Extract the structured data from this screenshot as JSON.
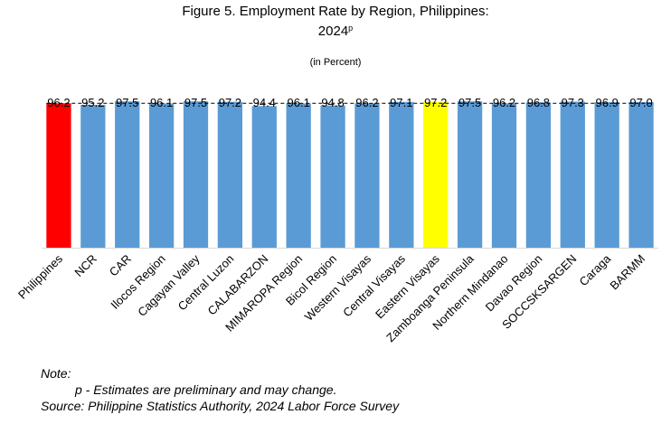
{
  "title_line1": "Figure 5. Employment Rate by Region, Philippines:",
  "title_line2": "2024",
  "title_sup": "p",
  "subtitle": "(in Percent)",
  "chart_data": {
    "type": "bar",
    "categories": [
      "Philippines",
      "NCR",
      "CAR",
      "Ilocos Region",
      "Cagayan Valley",
      "Central Luzon",
      "CALABARZON",
      "MIMAROPA Region",
      "Bicol Region",
      "Western Visayas",
      "Central Visayas",
      "Eastern Visayas",
      "Zamboanga Peninsula",
      "Northern Mindanao",
      "Davao Region",
      "SOCCSKSARGEN",
      "Caraga",
      "BARMM"
    ],
    "values": [
      96.2,
      95.2,
      97.5,
      96.1,
      97.5,
      97.2,
      94.4,
      96.1,
      94.8,
      96.2,
      97.1,
      97.2,
      97.5,
      96.2,
      96.8,
      97.3,
      96.9,
      97.0
    ],
    "value_labels": [
      "96.2",
      "95.2",
      "97.5",
      "96.1",
      "97.5",
      "97.2",
      "94.4",
      "96.1",
      "94.8",
      "96.2",
      "97.1",
      "97.2",
      "97.5",
      "96.2",
      "96.8",
      "97.3",
      "96.9",
      "97.0"
    ],
    "reference_line": 96.2,
    "colors": {
      "default": "#5B9BD5",
      "Philippines": "#FF0000",
      "Eastern Visayas": "#FFFF00"
    },
    "ylim": [
      0,
      100
    ]
  },
  "notes": {
    "note_label": "Note:",
    "p_note": "p -   Estimates are preliminary and may change.",
    "source": "Source: Philippine Statistics Authority, 2024 Labor Force Survey"
  }
}
